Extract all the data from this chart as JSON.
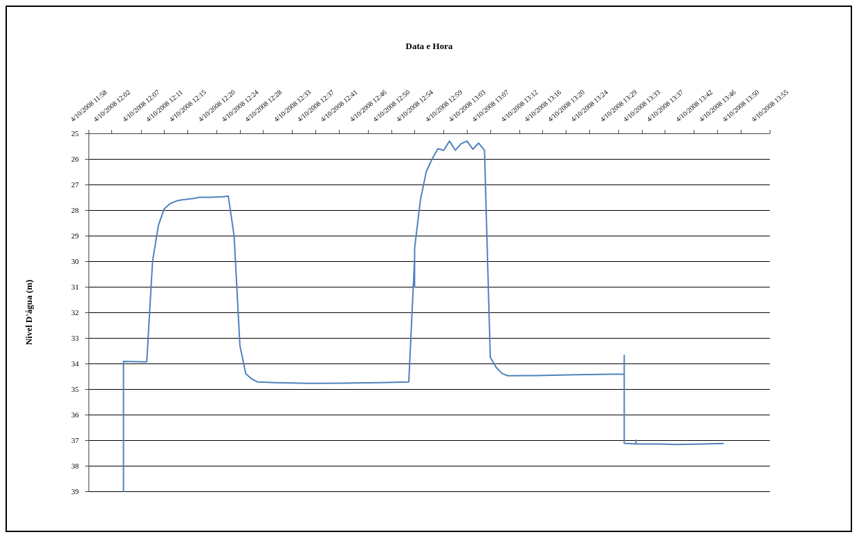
{
  "chart_data": {
    "type": "line",
    "xlabel": "Data e Hora",
    "ylabel": "Nivel D'água (m)",
    "xlim": [
      "2008-10-04T11:58",
      "2008-10-04T13:55"
    ],
    "ylim": [
      39,
      25
    ],
    "xticks": [
      {
        "value": "2008-10-04T11:58",
        "label": "4/10/2008 11:58"
      },
      {
        "value": "2008-10-04T12:02",
        "label": "4/10/2008 12:02"
      },
      {
        "value": "2008-10-04T12:07",
        "label": "4/10/2008 12:07"
      },
      {
        "value": "2008-10-04T12:11",
        "label": "4/10/2008 12:11"
      },
      {
        "value": "2008-10-04T12:15",
        "label": "4/10/2008 12:15"
      },
      {
        "value": "2008-10-04T12:20",
        "label": "4/10/2008 12:20"
      },
      {
        "value": "2008-10-04T12:24",
        "label": "4/10/2008 12:24"
      },
      {
        "value": "2008-10-04T12:28",
        "label": "4/10/2008 12:28"
      },
      {
        "value": "2008-10-04T12:33",
        "label": "4/10/2008 12:33"
      },
      {
        "value": "2008-10-04T12:37",
        "label": "4/10/2008 12:37"
      },
      {
        "value": "2008-10-04T12:41",
        "label": "4/10/2008 12:41"
      },
      {
        "value": "2008-10-04T12:46",
        "label": "4/10/2008 12:46"
      },
      {
        "value": "2008-10-04T12:50",
        "label": "4/10/2008 12:50"
      },
      {
        "value": "2008-10-04T12:54",
        "label": "4/10/2008 12:54"
      },
      {
        "value": "2008-10-04T12:59",
        "label": "4/10/2008 12:59"
      },
      {
        "value": "2008-10-04T13:03",
        "label": "4/10/2008 13:03"
      },
      {
        "value": "2008-10-04T13:07",
        "label": "4/10/2008 13:07"
      },
      {
        "value": "2008-10-04T13:12",
        "label": "4/10/2008 13:12"
      },
      {
        "value": "2008-10-04T13:16",
        "label": "4/10/2008 13:16"
      },
      {
        "value": "2008-10-04T13:20",
        "label": "4/10/2008 13:20"
      },
      {
        "value": "2008-10-04T13:24",
        "label": "4/10/2008 13:24"
      },
      {
        "value": "2008-10-04T13:29",
        "label": "4/10/2008 13:29"
      },
      {
        "value": "2008-10-04T13:33",
        "label": "4/10/2008 13:33"
      },
      {
        "value": "2008-10-04T13:37",
        "label": "4/10/2008 13:37"
      },
      {
        "value": "2008-10-04T13:42",
        "label": "4/10/2008 13:42"
      },
      {
        "value": "2008-10-04T13:46",
        "label": "4/10/2008 13:46"
      },
      {
        "value": "2008-10-04T13:50",
        "label": "4/10/2008 13:50"
      },
      {
        "value": "2008-10-04T13:55",
        "label": "4/10/2008 13:55"
      }
    ],
    "yticks": [
      25,
      26,
      27,
      28,
      29,
      30,
      31,
      32,
      33,
      34,
      35,
      36,
      37,
      38,
      39
    ],
    "grid": "y",
    "marker": "none",
    "line_style": "solid",
    "series": [
      {
        "color": "#4f81bd",
        "x": [
          "2008-10-04T12:04",
          "2008-10-04T12:04",
          "2008-10-04T12:08",
          "2008-10-04T12:09",
          "2008-10-04T12:10",
          "2008-10-04T12:11",
          "2008-10-04T12:12",
          "2008-10-04T12:13",
          "2008-10-04T12:14",
          "2008-10-04T12:16",
          "2008-10-04T12:17",
          "2008-10-04T12:19",
          "2008-10-04T12:21",
          "2008-10-04T12:22",
          "2008-10-04T12:23",
          "2008-10-04T12:24",
          "2008-10-04T12:25",
          "2008-10-04T12:26",
          "2008-10-04T12:27",
          "2008-10-04T12:30",
          "2008-10-04T12:36",
          "2008-10-04T12:42",
          "2008-10-04T12:48",
          "2008-10-04T12:53",
          "2008-10-04T12:54",
          "2008-10-04T12:54",
          "2008-10-04T12:54",
          "2008-10-04T12:55",
          "2008-10-04T12:56",
          "2008-10-04T12:57",
          "2008-10-04T12:58",
          "2008-10-04T12:59",
          "2008-10-04T13:00",
          "2008-10-04T13:01",
          "2008-10-04T13:02",
          "2008-10-04T13:03",
          "2008-10-04T13:04",
          "2008-10-04T13:05",
          "2008-10-04T13:06",
          "2008-10-04T13:07",
          "2008-10-04T13:08",
          "2008-10-04T13:09",
          "2008-10-04T13:10",
          "2008-10-04T13:15",
          "2008-10-04T13:22",
          "2008-10-04T13:30",
          "2008-10-04T13:30",
          "2008-10-04T13:30",
          "2008-10-04T13:30",
          "2008-10-04T13:30",
          "2008-10-04T13:30",
          "2008-10-04T13:32",
          "2008-10-04T13:32",
          "2008-10-04T13:32",
          "2008-10-04T13:36",
          "2008-10-04T13:39",
          "2008-10-04T13:47"
        ],
        "values": [
          39.0,
          33.92,
          33.94,
          30.0,
          28.6,
          27.95,
          27.75,
          27.65,
          27.6,
          27.55,
          27.5,
          27.5,
          27.48,
          27.45,
          29.0,
          33.3,
          34.4,
          34.6,
          34.72,
          34.75,
          34.78,
          34.77,
          34.75,
          34.72,
          29.9,
          31.0,
          29.5,
          27.6,
          26.5,
          26.0,
          25.6,
          25.66,
          25.3,
          25.66,
          25.4,
          25.3,
          25.62,
          25.38,
          25.66,
          33.76,
          34.15,
          34.39,
          34.48,
          34.47,
          34.44,
          34.41,
          34.85,
          35.5,
          33.68,
          35.2,
          37.12,
          37.15,
          37.0,
          37.15,
          37.15,
          37.17,
          37.13
        ]
      }
    ]
  }
}
